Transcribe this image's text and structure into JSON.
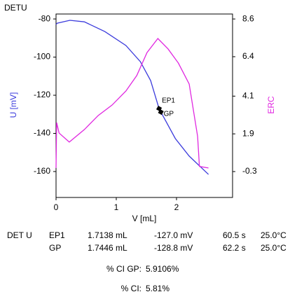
{
  "chart_data": {
    "type": "line",
    "title": "DETU",
    "xlabel": "V [mL]",
    "ylabel": "U [mV]",
    "y2label": "ERC",
    "xlim": [
      0,
      2.93
    ],
    "xticks": [
      0,
      1,
      2
    ],
    "ylim": [
      -173.6,
      -77.4
    ],
    "yticks": [
      -80,
      -100,
      -120,
      -140,
      -160
    ],
    "y2lim": [
      -1.81,
      8.89
    ],
    "y2ticks": [
      8.6,
      6.4,
      4.1,
      1.9,
      -0.3
    ],
    "grid": false,
    "series": [
      {
        "name": "U [mV]",
        "color": "#3b3bdc",
        "axis": "y",
        "x": [
          0,
          0.02,
          0.23,
          0.47,
          0.81,
          1.16,
          1.4,
          1.57,
          1.71,
          1.74,
          1.98,
          2.21,
          2.53
        ],
        "values": [
          -82.9,
          -82.2,
          -80.7,
          -81.5,
          -86.6,
          -93.9,
          -102.4,
          -112.3,
          -127.0,
          -128.8,
          -142.7,
          -151.9,
          -161.5
        ]
      },
      {
        "name": "ERC",
        "color": "#e028e0",
        "axis": "y2",
        "x": [
          0,
          0.01,
          0.05,
          0.22,
          0.47,
          0.7,
          0.93,
          1.16,
          1.34,
          1.51,
          1.69,
          1.86,
          2.03,
          2.21,
          2.35,
          2.38,
          2.53
        ],
        "values": [
          -0.09,
          2.56,
          1.95,
          1.42,
          2.15,
          2.97,
          3.58,
          4.4,
          5.3,
          6.64,
          7.46,
          6.85,
          6.03,
          4.81,
          1.75,
          0.0,
          -0.09
        ]
      }
    ],
    "annotations": [
      {
        "text": "EP1",
        "x": 1.71,
        "y": -127.0
      },
      {
        "text": "GP",
        "x": 1.74,
        "y": -128.8
      }
    ]
  },
  "table": {
    "label": "DET U",
    "rows": [
      [
        "EP1",
        "1.7138 mL",
        "-127.0 mV",
        "60.5 s",
        "25.0°C"
      ],
      [
        "GP",
        "1.7446 mL",
        "-128.8 mV",
        "62.2 s",
        "25.0°C"
      ]
    ]
  },
  "stats": [
    [
      "% CI GP:",
      "5.9106%"
    ],
    [
      "% CI:",
      "5.81%"
    ]
  ]
}
